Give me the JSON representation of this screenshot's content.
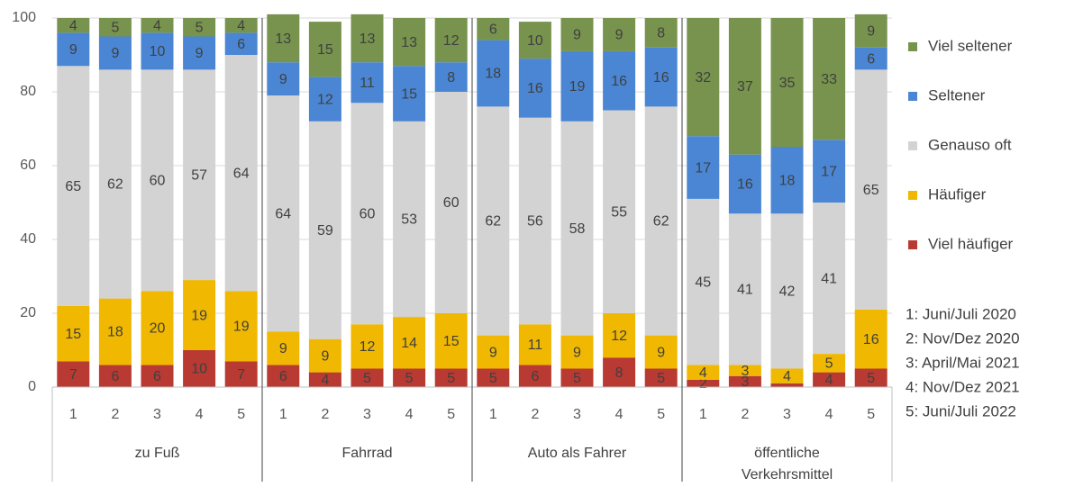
{
  "chart_data": {
    "type": "stacked_bar",
    "categories": [
      "1",
      "2",
      "3",
      "4",
      "5",
      "1",
      "2",
      "3",
      "4",
      "5",
      "1",
      "2",
      "3",
      "4",
      "5",
      "1",
      "2",
      "3",
      "4",
      "5"
    ],
    "groups": [
      {
        "name": "zu Fuß",
        "size": 5
      },
      {
        "name": "Fahrrad",
        "size": 5
      },
      {
        "name": "Auto als Fahrer",
        "size": 5
      },
      {
        "name": "öffentliche Verkehrsmittel",
        "size": 5
      }
    ],
    "series": [
      {
        "name": "Viel häufiger",
        "color": "#b83a32",
        "values": [
          7,
          6,
          6,
          10,
          7,
          6,
          4,
          5,
          5,
          5,
          5,
          6,
          5,
          8,
          5,
          2,
          3,
          1,
          4,
          5
        ],
        "value_labels": [
          "7",
          "6",
          "6",
          "10",
          "7",
          "6",
          "4",
          "5",
          "5",
          "5",
          "5",
          "6",
          "5",
          "8",
          "5",
          "2",
          "3",
          null,
          "4",
          "5"
        ]
      },
      {
        "name": "Häufiger",
        "color": "#f0b800",
        "values": [
          15,
          18,
          20,
          19,
          19,
          9,
          9,
          12,
          14,
          15,
          9,
          11,
          9,
          12,
          9,
          4,
          3,
          4,
          5,
          16
        ]
      },
      {
        "name": "Genauso oft",
        "color": "#d3d3d3",
        "values": [
          65,
          62,
          60,
          57,
          64,
          64,
          59,
          60,
          53,
          60,
          62,
          56,
          58,
          55,
          62,
          45,
          41,
          42,
          41,
          65
        ]
      },
      {
        "name": "Seltener",
        "color": "#4a86d3",
        "values": [
          9,
          9,
          10,
          9,
          6,
          9,
          12,
          11,
          15,
          8,
          18,
          16,
          19,
          16,
          16,
          17,
          16,
          18,
          17,
          6
        ]
      },
      {
        "name": "Viel seltener",
        "color": "#77934d",
        "values": [
          4,
          5,
          4,
          5,
          4,
          13,
          15,
          13,
          13,
          12,
          6,
          10,
          9,
          9,
          8,
          32,
          37,
          35,
          33,
          9
        ]
      }
    ],
    "notes": [
      "1: Juni/Juli 2020",
      "2: Nov/Dez 2020",
      "3: April/Mai 2021",
      "4: Nov/Dez 2021",
      "5: Juni/Juli 2022"
    ],
    "ylim": [
      0,
      100
    ],
    "yticks": [
      0,
      20,
      40,
      60,
      80,
      100
    ],
    "grid": true
  }
}
